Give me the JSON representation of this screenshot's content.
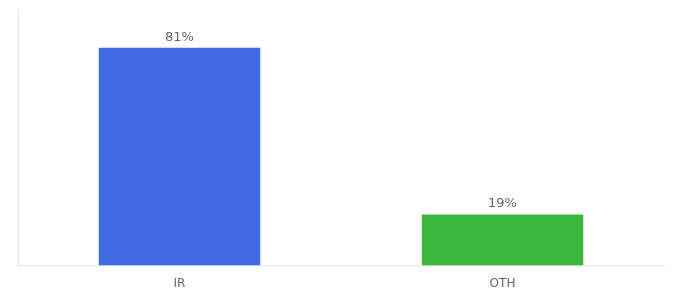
{
  "chart_data": {
    "type": "bar",
    "categories": [
      "IR",
      "OTH"
    ],
    "values": [
      81,
      19
    ],
    "value_labels": [
      "81%",
      "19%"
    ],
    "colors": [
      "#4169E1",
      "#3CB83C"
    ],
    "ylim": [
      0,
      95
    ],
    "yticks": [],
    "grid": false,
    "data_labels": true,
    "tick_labels": "x"
  }
}
